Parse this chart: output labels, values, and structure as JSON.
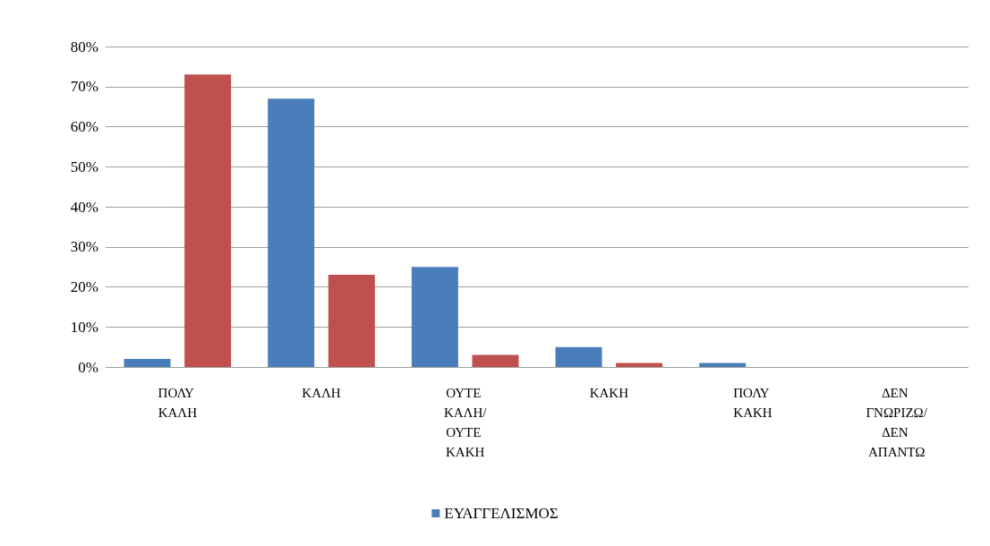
{
  "chart_data": {
    "type": "bar",
    "categories": [
      "ΠΟΛΥ ΚΑΛΗ",
      "ΚΑΛΗ",
      "ΟΥΤΕ ΚΑΛΗ/ΟΥΤΕ ΚΑΚΗ",
      "ΚΑΚΗ",
      "ΠΟΛΥ ΚΑΚΗ",
      "ΔΕΝ ΓΝΩΡΙΖΩ/ΔΕΝ ΑΠΑΝΤΩ"
    ],
    "series": [
      {
        "name": "ΕΥΑΓΓΕΛΙΣΜΟΣ",
        "color": "#4a7ebb",
        "values": [
          2,
          67,
          25,
          5,
          1,
          0
        ]
      },
      {
        "color": "#c0504d",
        "values": [
          73,
          23,
          3,
          1,
          0,
          0
        ]
      }
    ],
    "ylim": [
      0,
      80
    ],
    "yticks": [
      {
        "value": 0,
        "label": "0%"
      },
      {
        "value": 10,
        "label": "10%"
      },
      {
        "value": 20,
        "label": "20%"
      },
      {
        "value": 30,
        "label": "30%"
      },
      {
        "value": 40,
        "label": "40%"
      },
      {
        "value": 50,
        "label": "50%"
      },
      {
        "value": 60,
        "label": "60%"
      },
      {
        "value": 70,
        "label": "70%"
      },
      {
        "value": 80,
        "label": "80%"
      }
    ],
    "grid": "y",
    "legend": "bottom"
  }
}
